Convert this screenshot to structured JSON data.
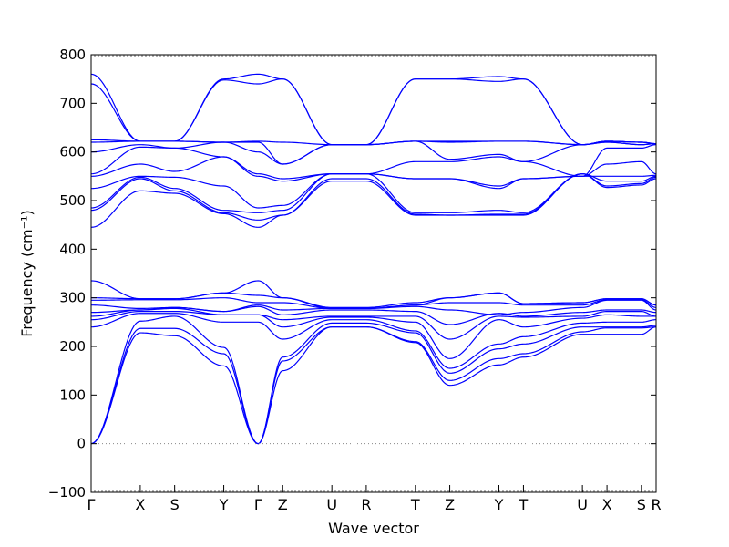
{
  "chart_data": {
    "type": "line",
    "title": "",
    "xlabel": "Wave vector",
    "ylabel": "Frequency (cm⁻¹)",
    "ylim": [
      -100,
      800
    ],
    "yticks": [
      -100,
      0,
      100,
      200,
      300,
      400,
      500,
      600,
      700,
      800
    ],
    "line_color": "#0000ff",
    "zero_line_color": "#888888",
    "grid": false,
    "k_labels": [
      "Γ",
      "X",
      "S",
      "Y",
      "Γ",
      "Z",
      "U",
      "R",
      "T",
      "Z",
      "Y",
      "T",
      "U",
      "X",
      "S",
      "R"
    ],
    "k_positions": [
      0,
      1.0,
      1.7,
      2.7,
      3.4,
      3.9,
      4.9,
      5.6,
      6.6,
      7.3,
      8.3,
      8.8,
      10.0,
      10.5,
      11.2,
      11.5
    ],
    "path_segments": [
      [
        0,
        1
      ],
      [
        1,
        2
      ],
      [
        2,
        3
      ],
      [
        3,
        4
      ],
      [
        4,
        5
      ],
      [
        5,
        6
      ],
      [
        6,
        7
      ],
      [
        7,
        8
      ],
      [
        8,
        9
      ],
      [
        9,
        10
      ],
      [
        10,
        11
      ],
      [
        11,
        12
      ],
      [
        12,
        13
      ],
      [
        13,
        14
      ],
      [
        14,
        15
      ]
    ],
    "bands_at_labels": [
      [
        0,
        228,
        222,
        160,
        0,
        150,
        240,
        240,
        208,
        120,
        162,
        178,
        225,
        225,
        225,
        240
      ],
      [
        0,
        237,
        237,
        185,
        0,
        170,
        240,
        240,
        210,
        130,
        175,
        185,
        230,
        238,
        238,
        240
      ],
      [
        0,
        252,
        262,
        198,
        0,
        178,
        248,
        248,
        228,
        145,
        195,
        205,
        240,
        240,
        240,
        243
      ],
      [
        240,
        268,
        268,
        250,
        250,
        215,
        255,
        255,
        232,
        155,
        205,
        220,
        248,
        250,
        250,
        255
      ],
      [
        255,
        272,
        272,
        265,
        265,
        240,
        260,
        260,
        250,
        175,
        255,
        240,
        258,
        265,
        262,
        262
      ],
      [
        262,
        275,
        278,
        265,
        265,
        255,
        262,
        262,
        262,
        215,
        262,
        260,
        262,
        272,
        272,
        262
      ],
      [
        270,
        275,
        280,
        272,
        282,
        265,
        275,
        275,
        272,
        245,
        268,
        262,
        270,
        275,
        275,
        270
      ],
      [
        285,
        278,
        280,
        272,
        285,
        275,
        278,
        278,
        282,
        275,
        265,
        270,
        280,
        295,
        295,
        275
      ],
      [
        295,
        296,
        296,
        300,
        290,
        290,
        278,
        278,
        285,
        290,
        290,
        285,
        285,
        296,
        296,
        280
      ],
      [
        300,
        298,
        298,
        310,
        305,
        300,
        278,
        278,
        285,
        300,
        310,
        288,
        290,
        298,
        298,
        285
      ],
      [
        335,
        298,
        298,
        310,
        335,
        300,
        280,
        280,
        290,
        300,
        310,
        288,
        290,
        298,
        298,
        285
      ],
      [
        445,
        520,
        515,
        473,
        445,
        470,
        540,
        540,
        470,
        470,
        470,
        470,
        555,
        527,
        532,
        545
      ],
      [
        480,
        545,
        520,
        475,
        460,
        470,
        545,
        545,
        472,
        470,
        472,
        472,
        555,
        530,
        535,
        548
      ],
      [
        485,
        548,
        525,
        480,
        475,
        480,
        555,
        555,
        475,
        475,
        480,
        475,
        555,
        540,
        540,
        550
      ],
      [
        525,
        550,
        548,
        530,
        485,
        490,
        555,
        555,
        545,
        545,
        525,
        545,
        550,
        550,
        550,
        552
      ],
      [
        550,
        575,
        560,
        590,
        550,
        540,
        555,
        555,
        545,
        545,
        530,
        545,
        550,
        575,
        580,
        555
      ],
      [
        555,
        610,
        608,
        590,
        555,
        545,
        555,
        555,
        580,
        580,
        590,
        580,
        550,
        608,
        608,
        615
      ],
      [
        600,
        615,
        608,
        620,
        600,
        575,
        615,
        615,
        622,
        585,
        595,
        580,
        615,
        620,
        615,
        617
      ],
      [
        620,
        622,
        622,
        620,
        620,
        575,
        615,
        615,
        622,
        620,
        622,
        622,
        615,
        620,
        615,
        617
      ],
      [
        625,
        622,
        622,
        620,
        622,
        620,
        615,
        615,
        622,
        622,
        622,
        622,
        615,
        622,
        620,
        617
      ],
      [
        740,
        622,
        622,
        748,
        740,
        750,
        615,
        615,
        750,
        750,
        745,
        750,
        615,
        622,
        620,
        617
      ],
      [
        760,
        622,
        622,
        750,
        760,
        750,
        615,
        615,
        750,
        750,
        755,
        750,
        615,
        622,
        620,
        617
      ]
    ]
  }
}
